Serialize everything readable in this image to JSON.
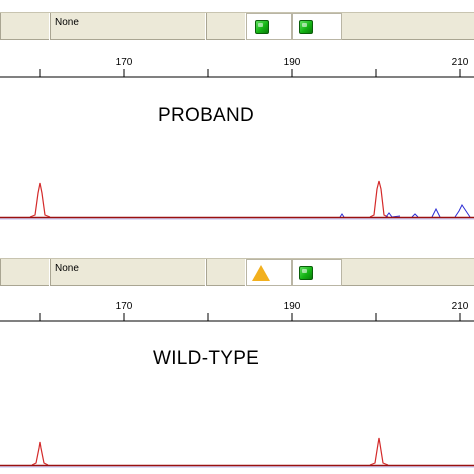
{
  "panels": [
    {
      "id": "proband",
      "status_text": "None",
      "sample_label": "PROBAND",
      "markers": [
        {
          "icon": "green-square-icon",
          "color": "#14b414"
        },
        {
          "icon": "green-square-icon",
          "color": "#14b414"
        }
      ],
      "axis": {
        "ticks": [
          "170",
          "190",
          "210"
        ]
      },
      "traces": {
        "red": "#d42a2a",
        "blue": "#2a2ad4",
        "baseline": "#9a1010"
      }
    },
    {
      "id": "wild-type",
      "status_text": "None",
      "sample_label": "WILD-TYPE",
      "markers": [
        {
          "icon": "warning-triangle-icon",
          "color": "#f2b01e"
        },
        {
          "icon": "green-square-icon",
          "color": "#14b414"
        }
      ],
      "axis": {
        "ticks": [
          "170",
          "190",
          "210"
        ]
      },
      "traces": {
        "red": "#d42a2a",
        "blue": "#2a2ad4",
        "baseline": "#9a1010"
      }
    }
  ]
}
